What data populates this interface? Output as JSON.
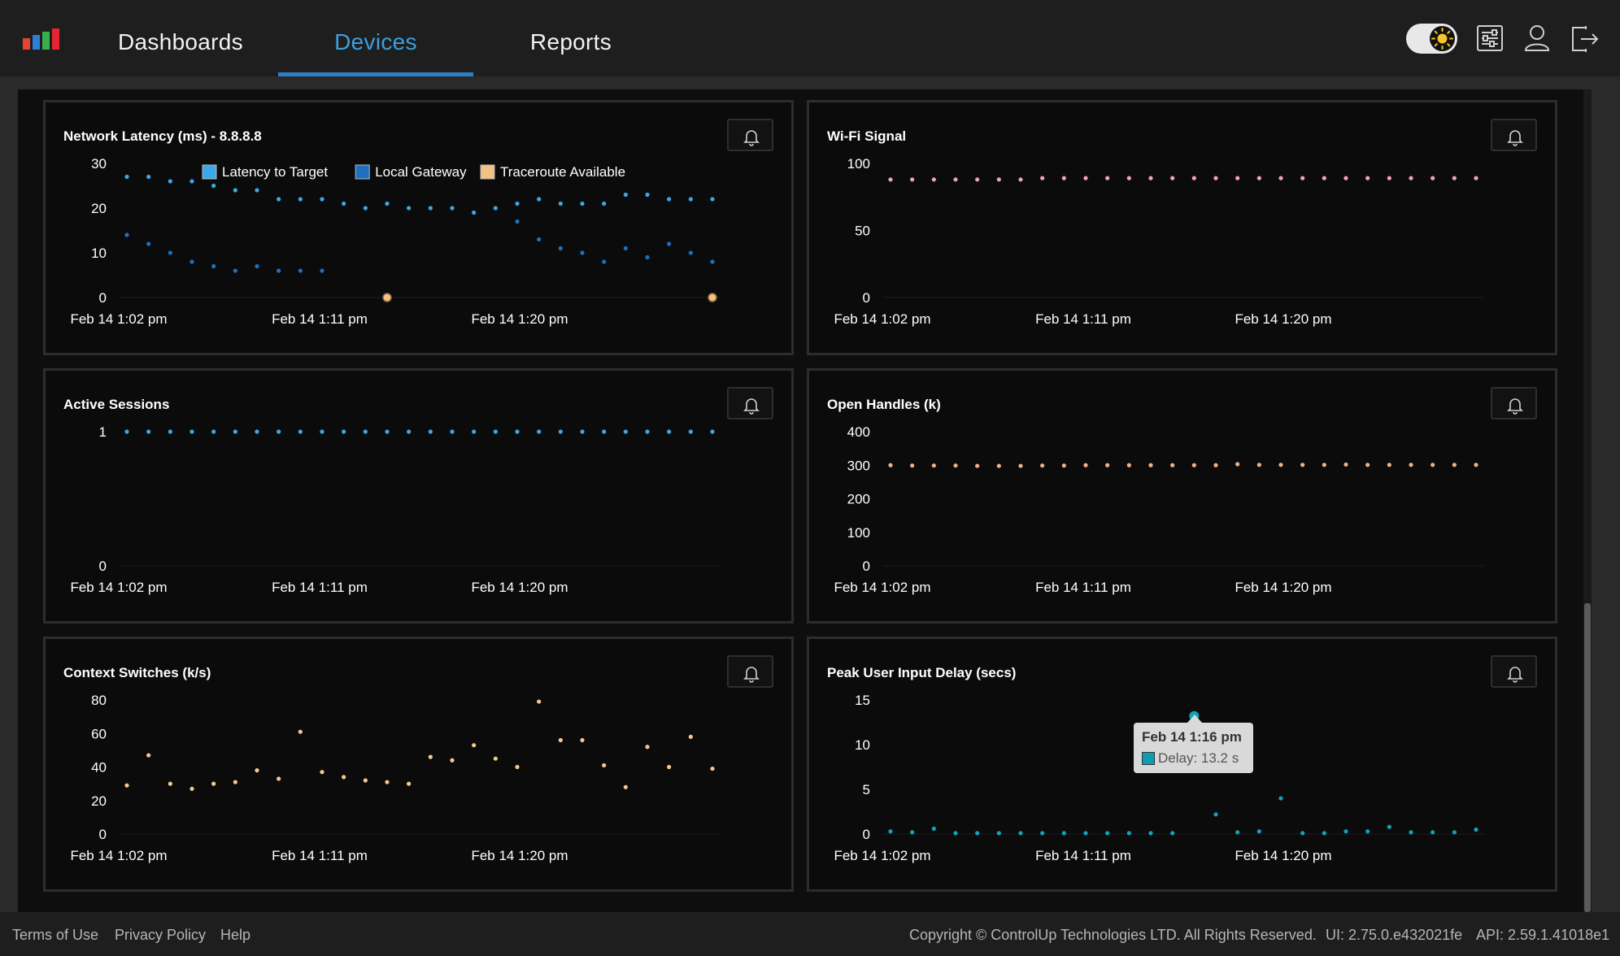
{
  "nav": {
    "tabs": [
      {
        "label": "Dashboards",
        "active": false
      },
      {
        "label": "Devices",
        "active": true
      },
      {
        "label": "Reports",
        "active": false
      }
    ]
  },
  "topbar": {
    "icons": [
      "theme-toggle",
      "settings-sliders-icon",
      "user-icon",
      "logout-icon"
    ]
  },
  "colors": {
    "accent": "#2d7fc4",
    "latency": "#3aa9e6",
    "gateway": "#1f6fbf",
    "traceroute": "#f2c184",
    "wifi": "#f3a3b5",
    "handles": "#f2b084",
    "context": "#f5c98a",
    "delay": "#10a3bb"
  },
  "panels": [
    {
      "title": "Network Latency (ms) - 8.8.8.8",
      "legend": [
        "Latency to Target",
        "Local Gateway",
        "Traceroute Available"
      ],
      "yticks": [
        "30",
        "20",
        "10",
        "0"
      ],
      "xticks": [
        "Feb 14 1:02 pm",
        "Feb 14 1:11 pm",
        "Feb 14 1:20 pm"
      ]
    },
    {
      "title": "Wi-Fi Signal",
      "yticks": [
        "100",
        "50",
        "0"
      ],
      "xticks": [
        "Feb 14 1:02 pm",
        "Feb 14 1:11 pm",
        "Feb 14 1:20 pm"
      ]
    },
    {
      "title": "Active Sessions",
      "yticks": [
        "1",
        "0"
      ],
      "xticks": [
        "Feb 14 1:02 pm",
        "Feb 14 1:11 pm",
        "Feb 14 1:20 pm"
      ]
    },
    {
      "title": "Open Handles (k)",
      "yticks": [
        "400",
        "300",
        "200",
        "100",
        "0"
      ],
      "xticks": [
        "Feb 14 1:02 pm",
        "Feb 14 1:11 pm",
        "Feb 14 1:20 pm"
      ]
    },
    {
      "title": "Context Switches (k/s)",
      "yticks": [
        "80",
        "60",
        "40",
        "20",
        "0"
      ],
      "xticks": [
        "Feb 14 1:02 pm",
        "Feb 14 1:11 pm",
        "Feb 14 1:20 pm"
      ]
    },
    {
      "title": "Peak User Input Delay (secs)",
      "yticks": [
        "15",
        "10",
        "5",
        "0"
      ],
      "xticks": [
        "Feb 14 1:02 pm",
        "Feb 14 1:11 pm",
        "Feb 14 1:20 pm"
      ]
    }
  ],
  "chart_data": [
    {
      "type": "scatter",
      "title": "Network Latency (ms) - 8.8.8.8",
      "ylim": [
        0,
        30
      ],
      "x": [
        "1:02",
        "1:03",
        "1:04",
        "1:05",
        "1:06",
        "1:07",
        "1:08",
        "1:09",
        "1:10",
        "1:11",
        "1:12",
        "1:13",
        "1:14",
        "1:15",
        "1:16",
        "1:17",
        "1:18",
        "1:19",
        "1:20",
        "1:21",
        "1:22",
        "1:23",
        "1:24",
        "1:25",
        "1:26",
        "1:27",
        "1:28",
        "1:29"
      ],
      "series": [
        {
          "name": "Latency to Target",
          "color": "#3aa9e6",
          "values": [
            27,
            27,
            26,
            26,
            25,
            24,
            24,
            22,
            22,
            22,
            21,
            20,
            21,
            20,
            20,
            20,
            19,
            20,
            21,
            22,
            21,
            21,
            21,
            23,
            23,
            22,
            22,
            22
          ]
        },
        {
          "name": "Local Gateway",
          "color": "#1f6fbf",
          "values": [
            14,
            12,
            10,
            8,
            7,
            6,
            7,
            6,
            6,
            6,
            null,
            null,
            null,
            null,
            null,
            null,
            null,
            null,
            17,
            13,
            11,
            10,
            8,
            11,
            9,
            12,
            10,
            8
          ]
        },
        {
          "name": "Traceroute Available",
          "color": "#f2c184",
          "points": [
            [
              "1:14",
              0
            ],
            [
              "1:29",
              0
            ]
          ]
        }
      ],
      "xticks": [
        "Feb 14 1:02 pm",
        "Feb 14 1:11 pm",
        "Feb 14 1:20 pm"
      ]
    },
    {
      "type": "scatter",
      "title": "Wi-Fi Signal",
      "ylim": [
        0,
        100
      ],
      "series": [
        {
          "color": "#f3a3b5",
          "values": [
            88,
            88,
            88,
            88,
            88,
            88,
            88,
            89,
            89,
            89,
            89,
            89,
            89,
            89,
            89,
            89,
            89,
            89,
            89,
            89,
            89,
            89,
            89,
            89,
            89,
            89,
            89,
            89
          ]
        }
      ],
      "xticks": [
        "Feb 14 1:02 pm",
        "Feb 14 1:11 pm",
        "Feb 14 1:20 pm"
      ]
    },
    {
      "type": "scatter",
      "title": "Active Sessions",
      "ylim": [
        0,
        1
      ],
      "series": [
        {
          "color": "#3aa9e6",
          "values": [
            1,
            1,
            1,
            1,
            1,
            1,
            1,
            1,
            1,
            1,
            1,
            1,
            1,
            1,
            1,
            1,
            1,
            1,
            1,
            1,
            1,
            1,
            1,
            1,
            1,
            1,
            1,
            1
          ]
        }
      ],
      "xticks": [
        "Feb 14 1:02 pm",
        "Feb 14 1:11 pm",
        "Feb 14 1:20 pm"
      ]
    },
    {
      "type": "scatter",
      "title": "Open Handles (k)",
      "ylim": [
        0,
        400
      ],
      "series": [
        {
          "color": "#f2b084",
          "values": [
            300,
            299,
            299,
            299,
            298,
            298,
            298,
            299,
            299,
            300,
            300,
            300,
            300,
            300,
            300,
            300,
            303,
            301,
            301,
            301,
            301,
            302,
            301,
            301,
            301,
            301,
            301,
            301
          ]
        }
      ],
      "xticks": [
        "Feb 14 1:02 pm",
        "Feb 14 1:11 pm",
        "Feb 14 1:20 pm"
      ]
    },
    {
      "type": "scatter",
      "title": "Context Switches (k/s)",
      "ylim": [
        0,
        80
      ],
      "series": [
        {
          "color": "#f5c98a",
          "values": [
            29,
            47,
            30,
            27,
            30,
            31,
            38,
            33,
            61,
            37,
            34,
            32,
            31,
            30,
            46,
            44,
            53,
            45,
            40,
            79,
            56,
            56,
            41,
            28,
            52,
            40,
            58,
            39
          ]
        }
      ],
      "xticks": [
        "Feb 14 1:02 pm",
        "Feb 14 1:11 pm",
        "Feb 14 1:20 pm"
      ]
    },
    {
      "type": "scatter",
      "title": "Peak User Input Delay (secs)",
      "ylim": [
        0,
        15
      ],
      "series": [
        {
          "name": "Delay",
          "color": "#10a3bb",
          "values": [
            0.3,
            0.2,
            0.6,
            0.1,
            0.1,
            0.1,
            0.1,
            0.1,
            0.1,
            0.1,
            0.1,
            0.1,
            0.1,
            0.1,
            13.2,
            2.2,
            0.2,
            0.3,
            4.0,
            0.1,
            0.1,
            0.3,
            0.3,
            0.8,
            0.2,
            0.2,
            0.2,
            0.5
          ]
        }
      ],
      "tooltip": {
        "date": "Feb 14 1:16 pm",
        "label": "Delay: 13.2 s"
      },
      "xticks": [
        "Feb 14 1:02 pm",
        "Feb 14 1:11 pm",
        "Feb 14 1:20 pm"
      ]
    }
  ],
  "footer": {
    "links": [
      "Terms of Use",
      "Privacy Policy",
      "Help"
    ],
    "copyright": "Copyright © ControlUp Technologies LTD. All Rights Reserved.",
    "ui_version": "UI: 2.75.0.e432021fe",
    "api_version": "API: 2.59.1.41018e1"
  }
}
